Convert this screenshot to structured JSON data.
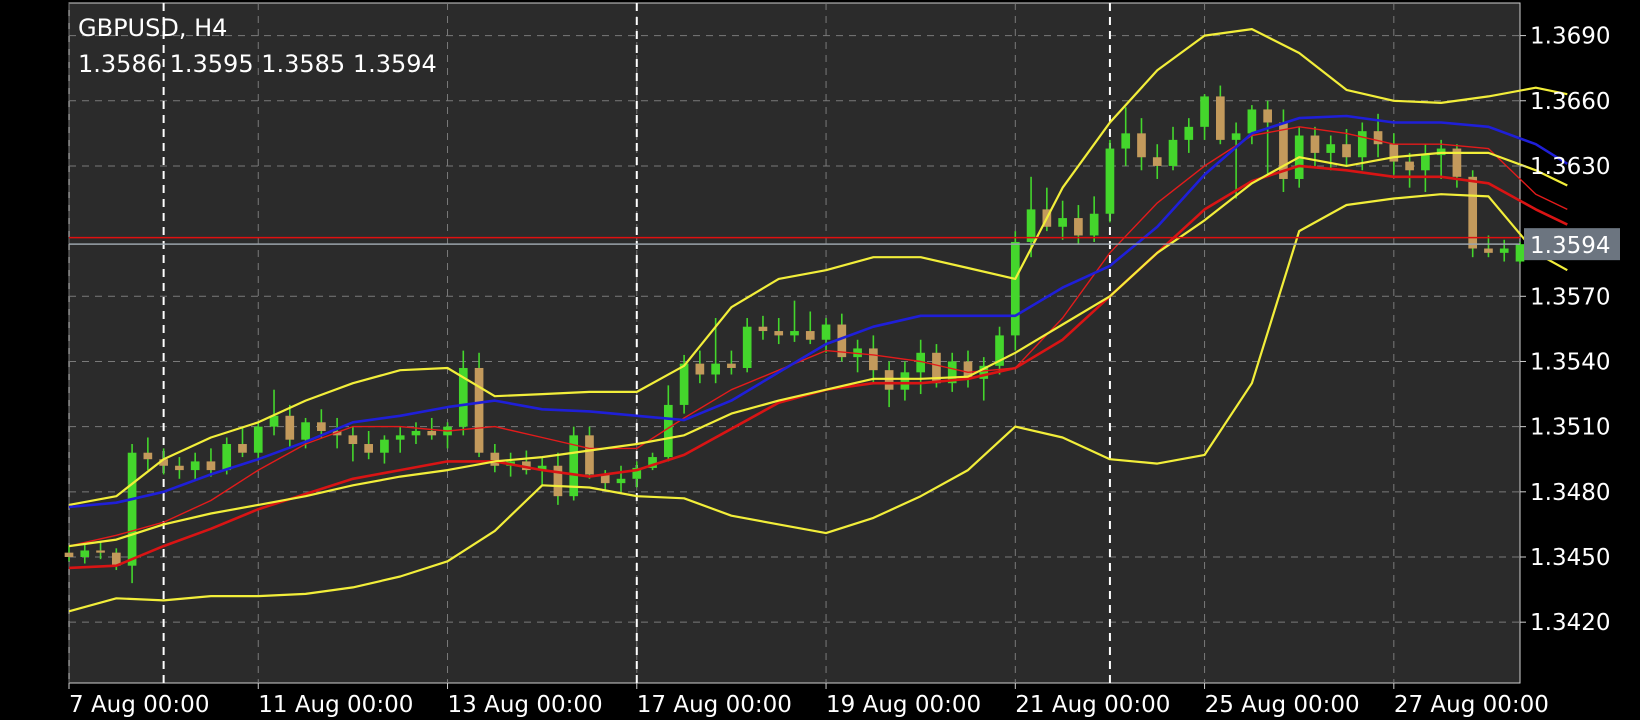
{
  "header": {
    "symbol": "GBPUSD, H4",
    "ohlc": "1.3586 1.3595 1.3585 1.3594"
  },
  "price_label": "1.3594",
  "colors": {
    "background": "#000000",
    "plot_bg": "#2b2b2b",
    "grid": "#7a7a7a",
    "bull": "#44d62c",
    "bear": "#c39a5c",
    "bollinger": "#f2ee3a",
    "ma_fast": "#e31b1b",
    "ma_slow": "#1f1fd8",
    "ma_thick": "#d91414",
    "price_line": "#9aa3ab",
    "red_line": "#e01010",
    "label_bg": "#6c7580"
  },
  "chart_data": {
    "type": "candlestick",
    "symbol": "GBPUSD",
    "timeframe": "H4",
    "last_price": 1.3594,
    "ylim": [
      1.3392,
      1.3705
    ],
    "xlim": [
      0,
      92
    ],
    "grid": true,
    "y_ticks": [
      "1.3690",
      "1.3660",
      "1.3630",
      "1.3570",
      "1.3540",
      "1.3510",
      "1.3480",
      "1.3450",
      "1.3420"
    ],
    "x_ticks": [
      {
        "label": "7 Aug 00:00",
        "x": 0
      },
      {
        "label": "11 Aug 00:00",
        "x": 12
      },
      {
        "label": "13 Aug 00:00",
        "x": 24
      },
      {
        "label": "17 Aug 00:00",
        "x": 36
      },
      {
        "label": "19 Aug 00:00",
        "x": 48
      },
      {
        "label": "21 Aug 00:00",
        "x": 60
      },
      {
        "label": "25 Aug 00:00",
        "x": 72
      },
      {
        "label": "27 Aug 00:00",
        "x": 84
      }
    ],
    "session_separators": [
      6,
      36,
      66
    ],
    "red_level": 1.3597,
    "candles": [
      [
        1.3452,
        1.3455,
        1.3448,
        1.345
      ],
      [
        1.345,
        1.3456,
        1.3447,
        1.3453
      ],
      [
        1.3453,
        1.3457,
        1.3449,
        1.3452
      ],
      [
        1.3452,
        1.3454,
        1.3444,
        1.3446
      ],
      [
        1.3446,
        1.3502,
        1.3438,
        1.3498
      ],
      [
        1.3498,
        1.3505,
        1.349,
        1.3495
      ],
      [
        1.3495,
        1.35,
        1.3488,
        1.3492
      ],
      [
        1.3492,
        1.3496,
        1.3486,
        1.349
      ],
      [
        1.349,
        1.3498,
        1.3485,
        1.3494
      ],
      [
        1.3494,
        1.35,
        1.3487,
        1.349
      ],
      [
        1.349,
        1.3505,
        1.3488,
        1.3502
      ],
      [
        1.3502,
        1.351,
        1.3496,
        1.3498
      ],
      [
        1.3498,
        1.3512,
        1.3495,
        1.351
      ],
      [
        1.351,
        1.3527,
        1.3506,
        1.3515
      ],
      [
        1.3515,
        1.352,
        1.35,
        1.3504
      ],
      [
        1.3504,
        1.3514,
        1.35,
        1.3512
      ],
      [
        1.3512,
        1.3518,
        1.3505,
        1.3508
      ],
      [
        1.3508,
        1.3514,
        1.35,
        1.3506
      ],
      [
        1.3506,
        1.351,
        1.3494,
        1.3502
      ],
      [
        1.3502,
        1.3508,
        1.3495,
        1.3498
      ],
      [
        1.3498,
        1.3506,
        1.3493,
        1.3504
      ],
      [
        1.3504,
        1.351,
        1.3498,
        1.3506
      ],
      [
        1.3506,
        1.3512,
        1.3502,
        1.3508
      ],
      [
        1.3508,
        1.3514,
        1.3504,
        1.3506
      ],
      [
        1.3506,
        1.3512,
        1.35,
        1.351
      ],
      [
        1.351,
        1.3545,
        1.3506,
        1.3537
      ],
      [
        1.3537,
        1.3544,
        1.3496,
        1.3498
      ],
      [
        1.3498,
        1.3502,
        1.3489,
        1.3492
      ],
      [
        1.3492,
        1.3498,
        1.3487,
        1.3494
      ],
      [
        1.3494,
        1.3499,
        1.3488,
        1.349
      ],
      [
        1.349,
        1.3496,
        1.3483,
        1.3492
      ],
      [
        1.3492,
        1.3498,
        1.3474,
        1.3478
      ],
      [
        1.3478,
        1.351,
        1.3476,
        1.3506
      ],
      [
        1.3506,
        1.351,
        1.3486,
        1.3488
      ],
      [
        1.3488,
        1.349,
        1.3481,
        1.3484
      ],
      [
        1.3484,
        1.3492,
        1.348,
        1.3486
      ],
      [
        1.3486,
        1.3494,
        1.3482,
        1.3491
      ],
      [
        1.3491,
        1.3498,
        1.349,
        1.3496
      ],
      [
        1.3496,
        1.3529,
        1.3494,
        1.352
      ],
      [
        1.352,
        1.3543,
        1.3516,
        1.3539
      ],
      [
        1.3539,
        1.3545,
        1.353,
        1.3534
      ],
      [
        1.3534,
        1.356,
        1.353,
        1.3539
      ],
      [
        1.3539,
        1.3545,
        1.3534,
        1.3537
      ],
      [
        1.3537,
        1.356,
        1.3535,
        1.3556
      ],
      [
        1.3556,
        1.3561,
        1.355,
        1.3554
      ],
      [
        1.3554,
        1.356,
        1.3548,
        1.3552
      ],
      [
        1.3552,
        1.3568,
        1.3549,
        1.3554
      ],
      [
        1.3554,
        1.3563,
        1.3548,
        1.355
      ],
      [
        1.355,
        1.356,
        1.3544,
        1.3557
      ],
      [
        1.3557,
        1.3562,
        1.354,
        1.3542
      ],
      [
        1.3542,
        1.355,
        1.3535,
        1.3546
      ],
      [
        1.3546,
        1.3552,
        1.353,
        1.3536
      ],
      [
        1.3536,
        1.354,
        1.3519,
        1.3527
      ],
      [
        1.3527,
        1.354,
        1.3522,
        1.3535
      ],
      [
        1.3535,
        1.355,
        1.3525,
        1.3544
      ],
      [
        1.3544,
        1.3548,
        1.3528,
        1.353
      ],
      [
        1.353,
        1.3544,
        1.3526,
        1.354
      ],
      [
        1.354,
        1.3545,
        1.3528,
        1.3532
      ],
      [
        1.3532,
        1.3542,
        1.3522,
        1.3538
      ],
      [
        1.3538,
        1.3556,
        1.3534,
        1.3552
      ],
      [
        1.3552,
        1.36,
        1.3545,
        1.3595
      ],
      [
        1.3595,
        1.3625,
        1.3588,
        1.361
      ],
      [
        1.361,
        1.362,
        1.36,
        1.3602
      ],
      [
        1.3602,
        1.3614,
        1.3596,
        1.3606
      ],
      [
        1.3606,
        1.3612,
        1.3594,
        1.3598
      ],
      [
        1.3598,
        1.3616,
        1.3595,
        1.3608
      ],
      [
        1.3608,
        1.3642,
        1.3604,
        1.3638
      ],
      [
        1.3638,
        1.3657,
        1.363,
        1.3645
      ],
      [
        1.3645,
        1.3652,
        1.3628,
        1.3634
      ],
      [
        1.3634,
        1.364,
        1.3624,
        1.363
      ],
      [
        1.363,
        1.3648,
        1.3628,
        1.3642
      ],
      [
        1.3642,
        1.3652,
        1.3636,
        1.3648
      ],
      [
        1.3648,
        1.3663,
        1.3642,
        1.3662
      ],
      [
        1.3662,
        1.3667,
        1.364,
        1.3642
      ],
      [
        1.3642,
        1.365,
        1.3615,
        1.3645
      ],
      [
        1.3645,
        1.3658,
        1.364,
        1.3656
      ],
      [
        1.3656,
        1.366,
        1.3626,
        1.365
      ],
      [
        1.365,
        1.3656,
        1.3618,
        1.3624
      ],
      [
        1.3624,
        1.3648,
        1.362,
        1.3644
      ],
      [
        1.3644,
        1.3648,
        1.363,
        1.3636
      ],
      [
        1.3636,
        1.3644,
        1.3628,
        1.364
      ],
      [
        1.364,
        1.3647,
        1.363,
        1.3634
      ],
      [
        1.3634,
        1.365,
        1.3628,
        1.3646
      ],
      [
        1.3646,
        1.3654,
        1.3634,
        1.364
      ],
      [
        1.364,
        1.3645,
        1.3626,
        1.3632
      ],
      [
        1.3632,
        1.3636,
        1.362,
        1.3628
      ],
      [
        1.3628,
        1.364,
        1.3618,
        1.3635
      ],
      [
        1.3635,
        1.3642,
        1.3624,
        1.3638
      ],
      [
        1.3638,
        1.364,
        1.362,
        1.3625
      ],
      [
        1.3625,
        1.3628,
        1.3588,
        1.3592
      ],
      [
        1.3592,
        1.3598,
        1.3588,
        1.359
      ],
      [
        1.359,
        1.3596,
        1.3586,
        1.3592
      ],
      [
        1.3586,
        1.3595,
        1.3585,
        1.3594
      ]
    ],
    "indicators": {
      "bollinger_upper": [
        [
          0,
          1.3474
        ],
        [
          3,
          1.3478
        ],
        [
          6,
          1.3495
        ],
        [
          9,
          1.3505
        ],
        [
          12,
          1.3512
        ],
        [
          15,
          1.3522
        ],
        [
          18,
          1.353
        ],
        [
          21,
          1.3536
        ],
        [
          24,
          1.3537
        ],
        [
          27,
          1.3524
        ],
        [
          30,
          1.3525
        ],
        [
          33,
          1.3526
        ],
        [
          36,
          1.3526
        ],
        [
          39,
          1.3538
        ],
        [
          42,
          1.3565
        ],
        [
          45,
          1.3578
        ],
        [
          48,
          1.3582
        ],
        [
          51,
          1.3588
        ],
        [
          54,
          1.3588
        ],
        [
          57,
          1.3583
        ],
        [
          60,
          1.3578
        ],
        [
          63,
          1.362
        ],
        [
          66,
          1.365
        ],
        [
          69,
          1.3674
        ],
        [
          72,
          1.369
        ],
        [
          75,
          1.3693
        ],
        [
          78,
          1.3682
        ],
        [
          81,
          1.3665
        ],
        [
          84,
          1.366
        ],
        [
          87,
          1.3659
        ],
        [
          90,
          1.3662
        ],
        [
          93,
          1.3666
        ],
        [
          95,
          1.3663
        ]
      ],
      "bollinger_middle": [
        [
          0,
          1.3455
        ],
        [
          3,
          1.3458
        ],
        [
          6,
          1.3465
        ],
        [
          9,
          1.347
        ],
        [
          12,
          1.3474
        ],
        [
          15,
          1.3478
        ],
        [
          18,
          1.3483
        ],
        [
          21,
          1.3487
        ],
        [
          24,
          1.349
        ],
        [
          27,
          1.3494
        ],
        [
          30,
          1.3496
        ],
        [
          33,
          1.3499
        ],
        [
          36,
          1.3502
        ],
        [
          39,
          1.3506
        ],
        [
          42,
          1.3516
        ],
        [
          45,
          1.3522
        ],
        [
          48,
          1.3527
        ],
        [
          51,
          1.3532
        ],
        [
          54,
          1.3532
        ],
        [
          57,
          1.3533
        ],
        [
          60,
          1.3544
        ],
        [
          63,
          1.3557
        ],
        [
          66,
          1.357
        ],
        [
          69,
          1.359
        ],
        [
          72,
          1.3605
        ],
        [
          75,
          1.3622
        ],
        [
          78,
          1.3634
        ],
        [
          81,
          1.363
        ],
        [
          84,
          1.3634
        ],
        [
          87,
          1.3636
        ],
        [
          90,
          1.3636
        ],
        [
          93,
          1.3628
        ],
        [
          95,
          1.3621
        ]
      ],
      "bollinger_lower": [
        [
          0,
          1.3425
        ],
        [
          3,
          1.3431
        ],
        [
          6,
          1.343
        ],
        [
          9,
          1.3432
        ],
        [
          12,
          1.3432
        ],
        [
          15,
          1.3433
        ],
        [
          18,
          1.3436
        ],
        [
          21,
          1.3441
        ],
        [
          24,
          1.3448
        ],
        [
          27,
          1.3462
        ],
        [
          30,
          1.3483
        ],
        [
          33,
          1.3482
        ],
        [
          36,
          1.3478
        ],
        [
          39,
          1.3477
        ],
        [
          42,
          1.3469
        ],
        [
          45,
          1.3465
        ],
        [
          48,
          1.3461
        ],
        [
          51,
          1.3468
        ],
        [
          54,
          1.3478
        ],
        [
          57,
          1.349
        ],
        [
          60,
          1.351
        ],
        [
          63,
          1.3505
        ],
        [
          66,
          1.3495
        ],
        [
          69,
          1.3493
        ],
        [
          72,
          1.3497
        ],
        [
          75,
          1.353
        ],
        [
          78,
          1.36
        ],
        [
          81,
          1.3612
        ],
        [
          84,
          1.3615
        ],
        [
          87,
          1.3617
        ],
        [
          90,
          1.3616
        ],
        [
          93,
          1.359
        ],
        [
          95,
          1.3582
        ]
      ],
      "ma_blue": [
        [
          0,
          1.3473
        ],
        [
          3,
          1.3475
        ],
        [
          6,
          1.348
        ],
        [
          9,
          1.3488
        ],
        [
          12,
          1.3495
        ],
        [
          15,
          1.3503
        ],
        [
          18,
          1.3512
        ],
        [
          21,
          1.3515
        ],
        [
          24,
          1.3519
        ],
        [
          27,
          1.3522
        ],
        [
          30,
          1.3518
        ],
        [
          33,
          1.3517
        ],
        [
          36,
          1.3515
        ],
        [
          39,
          1.3513
        ],
        [
          42,
          1.3522
        ],
        [
          45,
          1.3535
        ],
        [
          48,
          1.3548
        ],
        [
          51,
          1.3556
        ],
        [
          54,
          1.3561
        ],
        [
          57,
          1.3561
        ],
        [
          60,
          1.3561
        ],
        [
          63,
          1.3574
        ],
        [
          66,
          1.3584
        ],
        [
          69,
          1.3602
        ],
        [
          72,
          1.3626
        ],
        [
          75,
          1.3645
        ],
        [
          78,
          1.3652
        ],
        [
          81,
          1.3653
        ],
        [
          84,
          1.365
        ],
        [
          87,
          1.365
        ],
        [
          90,
          1.3648
        ],
        [
          93,
          1.364
        ],
        [
          95,
          1.3631
        ]
      ],
      "ma_red_thin": [
        [
          0,
          1.3455
        ],
        [
          3,
          1.346
        ],
        [
          6,
          1.3466
        ],
        [
          9,
          1.3476
        ],
        [
          12,
          1.349
        ],
        [
          15,
          1.3502
        ],
        [
          18,
          1.351
        ],
        [
          21,
          1.351
        ],
        [
          24,
          1.3508
        ],
        [
          27,
          1.351
        ],
        [
          30,
          1.3505
        ],
        [
          33,
          1.35
        ],
        [
          36,
          1.35
        ],
        [
          39,
          1.3514
        ],
        [
          42,
          1.3527
        ],
        [
          45,
          1.3536
        ],
        [
          48,
          1.3545
        ],
        [
          51,
          1.3543
        ],
        [
          54,
          1.354
        ],
        [
          57,
          1.3535
        ],
        [
          60,
          1.3537
        ],
        [
          63,
          1.356
        ],
        [
          66,
          1.359
        ],
        [
          69,
          1.3613
        ],
        [
          72,
          1.363
        ],
        [
          75,
          1.3644
        ],
        [
          78,
          1.3648
        ],
        [
          81,
          1.3645
        ],
        [
          84,
          1.364
        ],
        [
          87,
          1.364
        ],
        [
          90,
          1.3638
        ],
        [
          93,
          1.3617
        ],
        [
          95,
          1.361
        ]
      ],
      "ma_red_thick": [
        [
          0,
          1.3445
        ],
        [
          3,
          1.3446
        ],
        [
          6,
          1.3455
        ],
        [
          9,
          1.3463
        ],
        [
          12,
          1.3472
        ],
        [
          15,
          1.3479
        ],
        [
          18,
          1.3486
        ],
        [
          21,
          1.349
        ],
        [
          24,
          1.3494
        ],
        [
          27,
          1.3494
        ],
        [
          30,
          1.349
        ],
        [
          33,
          1.3487
        ],
        [
          36,
          1.349
        ],
        [
          39,
          1.3497
        ],
        [
          42,
          1.3509
        ],
        [
          45,
          1.3521
        ],
        [
          48,
          1.3527
        ],
        [
          51,
          1.353
        ],
        [
          54,
          1.353
        ],
        [
          57,
          1.3532
        ],
        [
          60,
          1.3537
        ],
        [
          63,
          1.355
        ],
        [
          66,
          1.357
        ],
        [
          69,
          1.359
        ],
        [
          72,
          1.361
        ],
        [
          75,
          1.3623
        ],
        [
          78,
          1.363
        ],
        [
          81,
          1.3628
        ],
        [
          84,
          1.3625
        ],
        [
          87,
          1.3625
        ],
        [
          90,
          1.3622
        ],
        [
          93,
          1.361
        ],
        [
          95,
          1.3603
        ]
      ]
    }
  }
}
